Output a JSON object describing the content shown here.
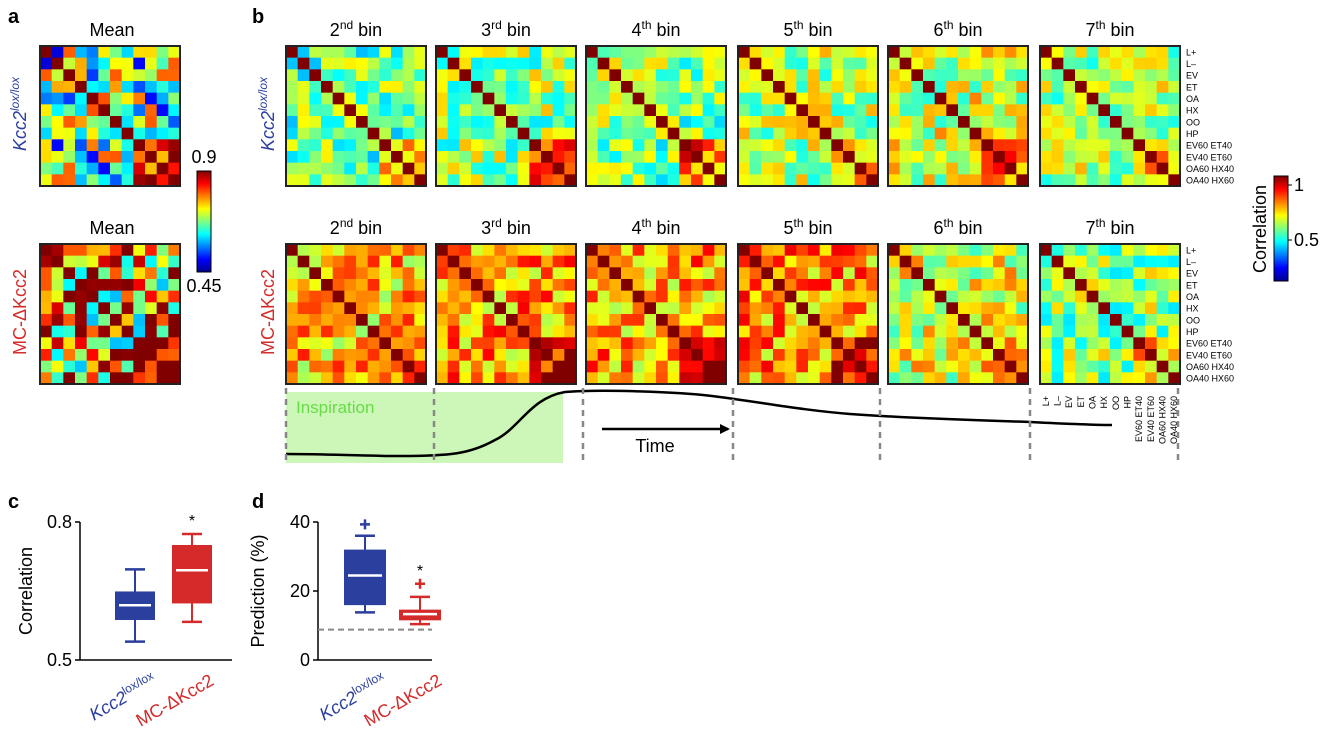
{
  "panels": {
    "a": {
      "letter": "a",
      "top_title": "Mean",
      "bottom_title": "Mean"
    },
    "b": {
      "letter": "b"
    },
    "c": {
      "letter": "c"
    },
    "d": {
      "letter": "d"
    }
  },
  "genotypes": {
    "control_base": "Kcc2",
    "control_sup": "lox/lox",
    "mutant": "MC-ΔKcc2"
  },
  "colors": {
    "control": "#2b3f9e",
    "mutant": "#d42a2a",
    "inspiration_fill": "#ccf7b8",
    "inspiration_text": "#66dd44"
  },
  "colorbar_a": {
    "max_label": "0.9",
    "min_label": "0.45"
  },
  "colorbar_b": {
    "max_label": "1",
    "mid_label": "0.5",
    "label": "Correlation"
  },
  "bins": [
    {
      "num": "2",
      "sup": "nd",
      "word": "bin"
    },
    {
      "num": "3",
      "sup": "rd",
      "word": "bin"
    },
    {
      "num": "4",
      "sup": "th",
      "word": "bin"
    },
    {
      "num": "5",
      "sup": "th",
      "word": "bin"
    },
    {
      "num": "6",
      "sup": "th",
      "word": "bin"
    },
    {
      "num": "7",
      "sup": "th",
      "word": "bin"
    }
  ],
  "odor_labels": [
    "L+",
    "L–",
    "EV",
    "ET",
    "OA",
    "HX",
    "OO",
    "HP",
    "EV60 ET40",
    "EV40 ET60",
    "OA60 HX40",
    "OA40 HX60"
  ],
  "trace": {
    "inspiration_label": "Inspiration",
    "time_label": "Time"
  },
  "chart_data": [
    {
      "type": "heatmap",
      "title": "",
      "rows": [
        "L+",
        "L–",
        "EV",
        "ET",
        "OA",
        "HX",
        "OO",
        "HP",
        "EV60 ET40",
        "EV40 ET60",
        "OA60 HX40",
        "OA40 HX60"
      ],
      "columns": [
        "L+",
        "L–",
        "EV",
        "ET",
        "OA",
        "HX",
        "OO",
        "HP",
        "EV60 ET40",
        "EV40 ET60",
        "OA60 HX40",
        "OA40 HX60"
      ],
      "colorbar_label": "Correlation",
      "panels": [
        {
          "panel": "a",
          "genotype": "control",
          "bin": "Mean",
          "color_range": [
            0.45,
            0.9
          ],
          "base": 0.66,
          "block": 0.85,
          "diag": 0.9
        },
        {
          "panel": "a",
          "genotype": "mutant",
          "bin": "Mean",
          "color_range": [
            0.45,
            0.9
          ],
          "base": 0.76,
          "block": 0.9,
          "diag": 0.9
        },
        {
          "panel": "b",
          "genotype": "control",
          "bin": "2nd bin",
          "color_range": [
            0,
            1
          ],
          "base": 0.47,
          "block": 0.7,
          "diag": 1
        },
        {
          "panel": "b",
          "genotype": "control",
          "bin": "3rd bin",
          "color_range": [
            0,
            1
          ],
          "base": 0.52,
          "block": 0.75,
          "diag": 1
        },
        {
          "panel": "b",
          "genotype": "control",
          "bin": "4th bin",
          "color_range": [
            0,
            1
          ],
          "base": 0.5,
          "block": 0.78,
          "diag": 1
        },
        {
          "panel": "b",
          "genotype": "control",
          "bin": "5th bin",
          "color_range": [
            0,
            1
          ],
          "base": 0.55,
          "block": 0.74,
          "diag": 1
        },
        {
          "panel": "b",
          "genotype": "control",
          "bin": "6th bin",
          "color_range": [
            0,
            1
          ],
          "base": 0.58,
          "block": 0.72,
          "diag": 1
        },
        {
          "panel": "b",
          "genotype": "control",
          "bin": "7th bin",
          "color_range": [
            0,
            1
          ],
          "base": 0.55,
          "block": 0.68,
          "diag": 1
        },
        {
          "panel": "b",
          "genotype": "mutant",
          "bin": "2nd bin",
          "color_range": [
            0,
            1
          ],
          "base": 0.68,
          "block": 0.82,
          "diag": 1
        },
        {
          "panel": "b",
          "genotype": "mutant",
          "bin": "3rd bin",
          "color_range": [
            0,
            1
          ],
          "base": 0.72,
          "block": 0.86,
          "diag": 1
        },
        {
          "panel": "b",
          "genotype": "mutant",
          "bin": "4th bin",
          "color_range": [
            0,
            1
          ],
          "base": 0.71,
          "block": 0.9,
          "diag": 1
        },
        {
          "panel": "b",
          "genotype": "mutant",
          "bin": "5th bin",
          "color_range": [
            0,
            1
          ],
          "base": 0.73,
          "block": 0.88,
          "diag": 1
        },
        {
          "panel": "b",
          "genotype": "mutant",
          "bin": "6th bin",
          "color_range": [
            0,
            1
          ],
          "base": 0.6,
          "block": 0.77,
          "diag": 1
        },
        {
          "panel": "b",
          "genotype": "mutant",
          "bin": "7th bin",
          "color_range": [
            0,
            1
          ],
          "base": 0.52,
          "block": 0.68,
          "diag": 1
        }
      ]
    },
    {
      "type": "box",
      "panel": "c",
      "ylabel": "Correlation",
      "ylim": [
        0.5,
        0.8
      ],
      "yticks": [
        "0.5",
        "0.8"
      ],
      "categories": [
        "Kcc2 lox/lox",
        "MC-ΔKcc2"
      ],
      "boxes": [
        {
          "name": "Kcc2 lox/lox",
          "min": 0.54,
          "q1": 0.587,
          "median": 0.619,
          "q3": 0.649,
          "max": 0.697,
          "outliers": []
        },
        {
          "name": "MC-ΔKcc2",
          "min": 0.583,
          "q1": 0.623,
          "median": 0.695,
          "q3": 0.75,
          "max": 0.774,
          "outliers": []
        }
      ],
      "annotations": [
        {
          "text": "*",
          "category": "MC-ΔKcc2"
        }
      ]
    },
    {
      "type": "box",
      "panel": "d",
      "ylabel": "Prediction (%)",
      "ylim": [
        0,
        40
      ],
      "yticks": [
        "0",
        "20",
        "40"
      ],
      "categories": [
        "Kcc2 lox/lox",
        "MC-ΔKcc2"
      ],
      "boxes": [
        {
          "name": "Kcc2 lox/lox",
          "min": 13.8,
          "q1": 15.9,
          "median": 24.5,
          "q3": 32.0,
          "max": 36.0,
          "outliers": [
            39.3
          ]
        },
        {
          "name": "MC-ΔKcc2",
          "min": 10.4,
          "q1": 11.5,
          "median": 13.3,
          "q3": 14.6,
          "max": 18.3,
          "outliers": [
            22.1
          ]
        }
      ],
      "chance_level": 8.8,
      "annotations": [
        {
          "text": "*",
          "category": "MC-ΔKcc2"
        }
      ]
    }
  ]
}
